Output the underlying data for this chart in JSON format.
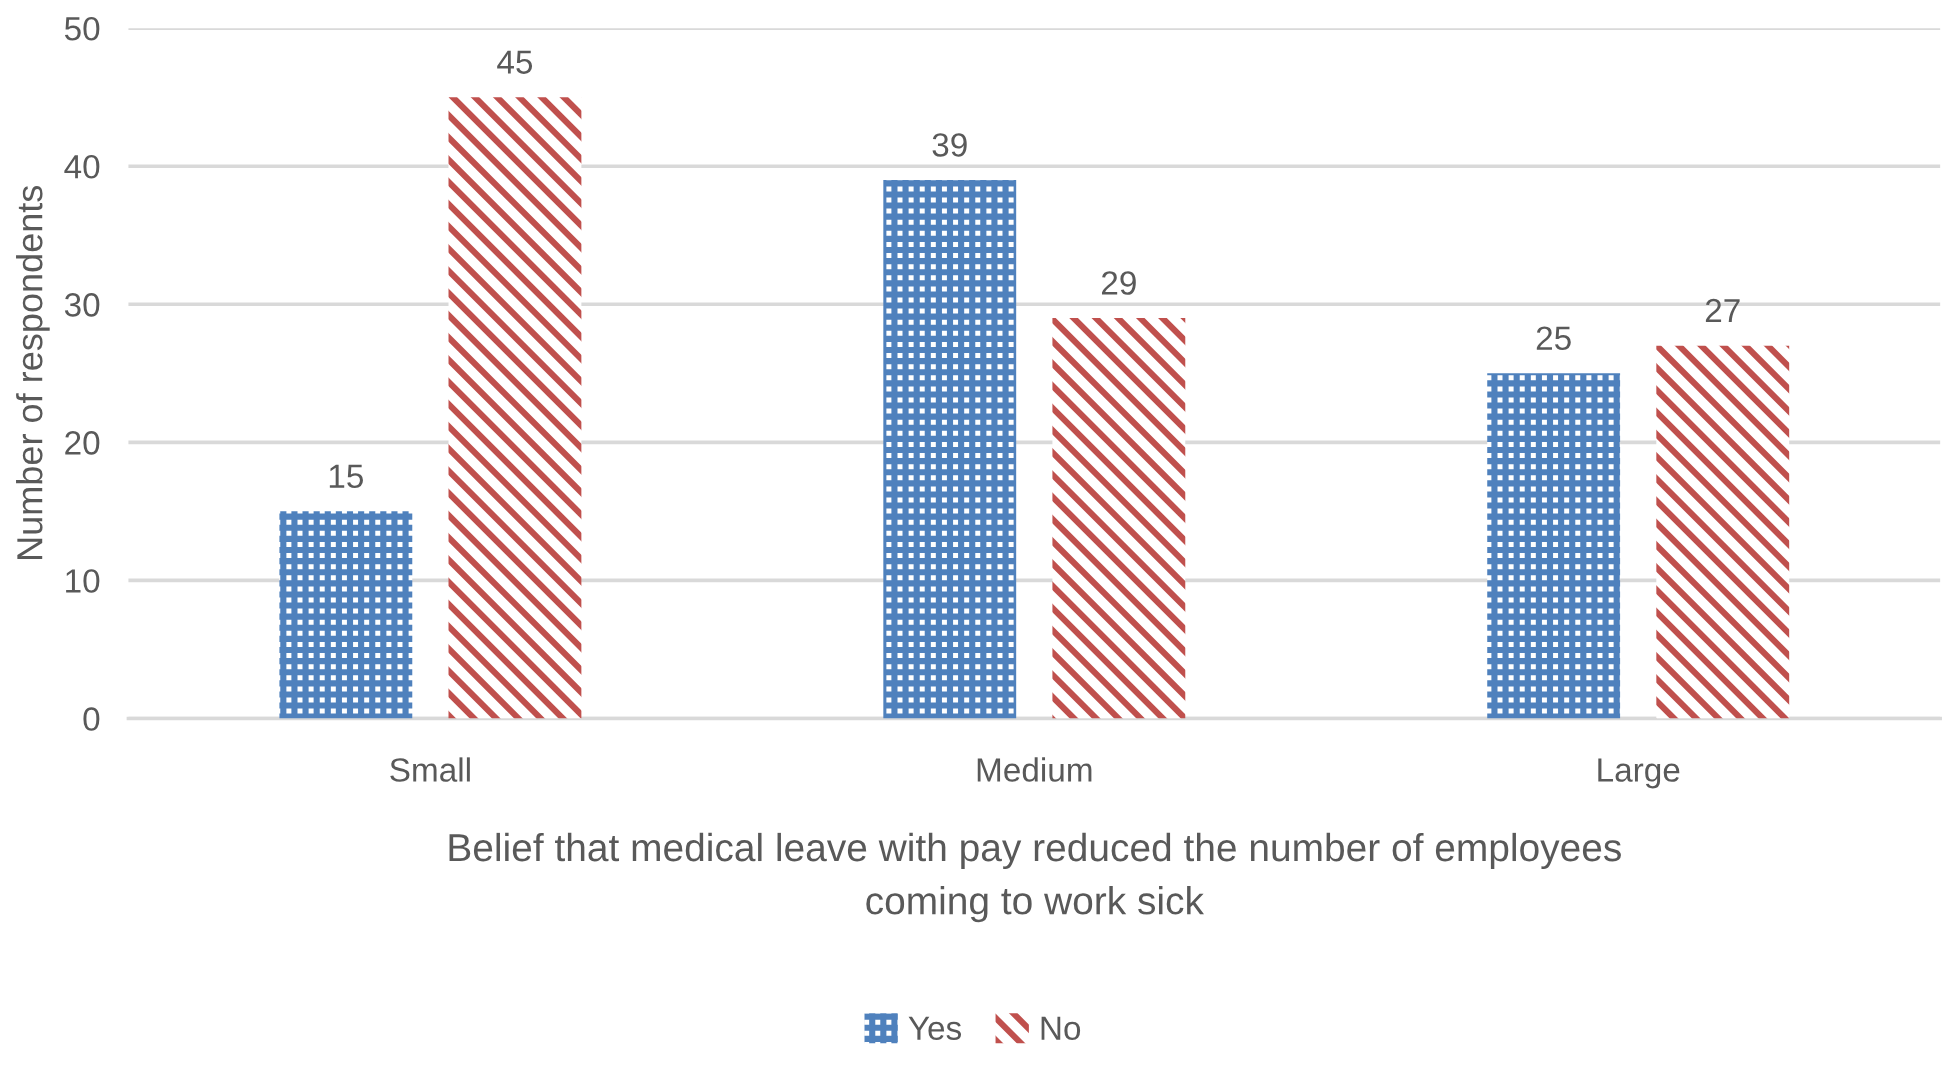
{
  "chart_data": {
    "type": "bar",
    "categories": [
      "Small",
      "Medium",
      "Large"
    ],
    "series": [
      {
        "name": "Yes",
        "color": "#4f81bd",
        "values": [
          15,
          39,
          25
        ]
      },
      {
        "name": "No",
        "color": "#c0504d",
        "values": [
          45,
          29,
          27
        ]
      }
    ],
    "xlabel": "Belief that medical leave with pay reduced the number of employees\ncoming to work sick",
    "ylabel": "Number of respondents",
    "ylim": [
      0,
      50
    ],
    "yticks": [
      0,
      10,
      20,
      30,
      40,
      50
    ],
    "grid": "y",
    "legend": "bottom",
    "data_labels": true
  }
}
